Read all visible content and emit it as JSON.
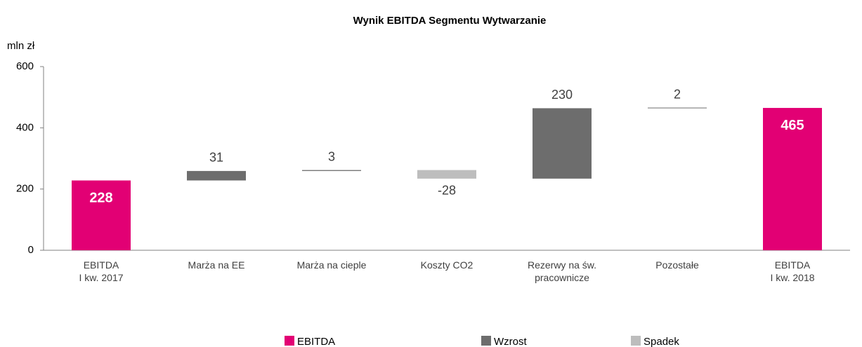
{
  "chart_data": {
    "type": "waterfall",
    "title": "Wynik EBITDA Segmentu Wytwarzanie",
    "y_label": "mln zł",
    "categories": [
      [
        "EBITDA",
        "I kw. 2017"
      ],
      [
        "Marża na EE"
      ],
      [
        "Marża na cieple"
      ],
      [
        "Koszty CO2"
      ],
      [
        "Rezerwy na św.",
        "pracownicze"
      ],
      [
        "Pozostałe"
      ],
      [
        "EBITDA",
        "I kw. 2018"
      ]
    ],
    "values": [
      228,
      31,
      3,
      -28,
      230,
      2,
      465
    ],
    "legend": [
      {
        "name": "EBITDA",
        "color": "#e20074"
      },
      {
        "name": "Wzrost",
        "color": "#6d6d6d"
      },
      {
        "name": "Spadek",
        "color": "#bdbdbd"
      }
    ],
    "ylim": [
      0,
      600
    ],
    "yticks": [
      0,
      200,
      400,
      600
    ]
  }
}
